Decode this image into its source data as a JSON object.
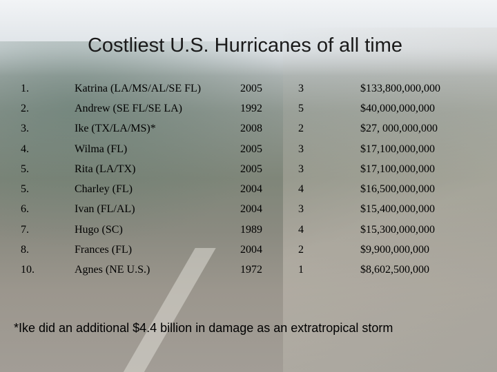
{
  "slide": {
    "title": "Costliest U.S. Hurricanes of all time",
    "footnote": "*Ike did an additional $4.4 billion in damage as an extratropical storm"
  },
  "hurricanes": [
    {
      "rank": "1.",
      "name": "Katrina (LA/MS/AL/SE FL)",
      "year": "2005",
      "category": "3",
      "cost": "$133,800,000,000"
    },
    {
      "rank": "2.",
      "name": "Andrew (SE FL/SE LA)",
      "year": "1992",
      "category": "5",
      "cost": "$40,000,000,000"
    },
    {
      "rank": "3.",
      "name": "Ike (TX/LA/MS)*",
      "year": "2008",
      "category": "2",
      "cost": "$27, 000,000,000"
    },
    {
      "rank": "4.",
      "name": "Wilma (FL)",
      "year": "2005",
      "category": "3",
      "cost": "$17,100,000,000"
    },
    {
      "rank": "5.",
      "name": "Rita (LA/TX)",
      "year": "2005",
      "category": "3",
      "cost": "$17,100,000,000"
    },
    {
      "rank": "5.",
      "name": "Charley (FL)",
      "year": "2004",
      "category": "4",
      "cost": "$16,500,000,000"
    },
    {
      "rank": "6.",
      "name": "Ivan (FL/AL)",
      "year": "2004",
      "category": "3",
      "cost": "$15,400,000,000"
    },
    {
      "rank": "7.",
      "name": "Hugo (SC)",
      "year": "1989",
      "category": "4",
      "cost": "$15,300,000,000"
    },
    {
      "rank": "8.",
      "name": "Frances (FL)",
      "year": "2004",
      "category": "2",
      "cost": "$9,900,000,000"
    },
    {
      "rank": "10.",
      "name": "Agnes (NE U.S.)",
      "year": "1972",
      "category": "1",
      "cost": "$8,602,500,000"
    }
  ]
}
